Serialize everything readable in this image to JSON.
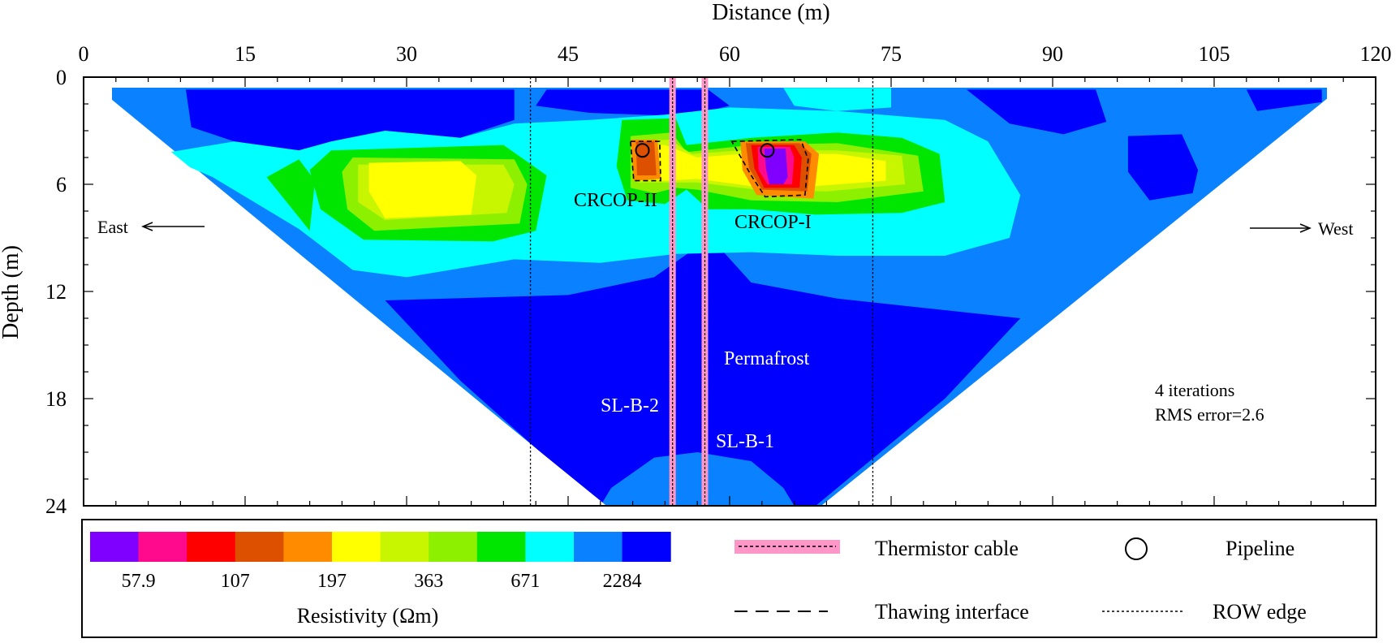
{
  "chart_data": {
    "type": "heatmap",
    "title": "",
    "xlabel": "Distance (m)",
    "ylabel": "Depth (m)",
    "xlim": [
      0,
      120
    ],
    "ylim": [
      0,
      24
    ],
    "x_ticks": [
      0,
      15,
      30,
      45,
      60,
      75,
      90,
      105,
      120
    ],
    "y_ticks": [
      0,
      6,
      12,
      18,
      24
    ],
    "y_reversed": true,
    "colorbar": {
      "label": "Resistivity (Ωm)",
      "colors": [
        "#8000ff",
        "#ff0a8c",
        "#ff0000",
        "#dc5000",
        "#ff8c00",
        "#ffff00",
        "#c8f500",
        "#8cf000",
        "#00e600",
        "#00ffff",
        "#0a82ff",
        "#0000ff"
      ],
      "tick_labels": [
        "57.9",
        "107",
        "197",
        "363",
        "671",
        "2284"
      ]
    },
    "annotations": {
      "east": "East",
      "west": "West",
      "crcop2": "CRCOP-II",
      "crcop1": "CRCOP-I",
      "permafrost": "Permafrost",
      "slb2": "SL-B-2",
      "slb1": "SL-B-1",
      "iterations": "4 iterations",
      "rms": "RMS error=2.6"
    },
    "row_edges_x": [
      41.5,
      73.3
    ],
    "thermistor_cables_x": [
      54.7,
      57.7
    ],
    "pipelines": [
      {
        "x": 51.9,
        "depth": 4.1
      },
      {
        "x": 63.5,
        "depth": 4.1
      }
    ],
    "model_section": {
      "x_start": 2.5,
      "x_end": 115.5,
      "top_depth": 0.5,
      "bottom_depth": 24,
      "bottom_x_range": [
        48.5,
        68.5
      ]
    },
    "legend": {
      "thermistor": "Thermistor cable",
      "pipeline": "Pipeline",
      "thawing": "Thawing interface",
      "row": "ROW edge"
    }
  }
}
